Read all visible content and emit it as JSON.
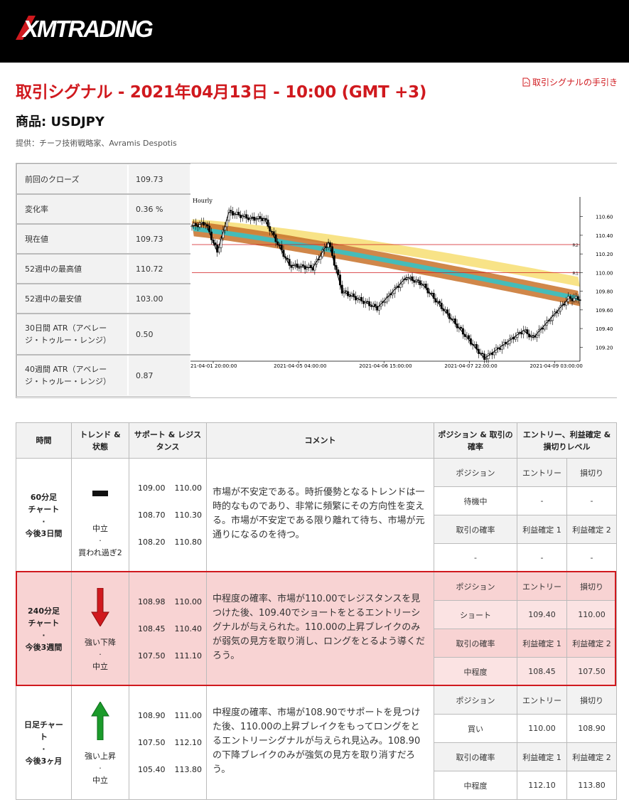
{
  "header": {
    "logo_text": "XMTRADING"
  },
  "title": "取引シグナル - 2021年04月13日 - 10:00 (GMT +3)",
  "guide_link": "取引シグナルの手引き",
  "product": "商品: USDJPY",
  "provider": "提供：チーフ技術戦略家、Avramis Despotis",
  "stats": [
    {
      "label": "前回のクローズ",
      "value": "109.73"
    },
    {
      "label": "変化率",
      "value": "0.36 %"
    },
    {
      "label": "現在値",
      "value": "109.73"
    },
    {
      "label": "52週中の最高値",
      "value": "110.72"
    },
    {
      "label": "52週中の最安値",
      "value": "103.00"
    },
    {
      "label": "30日間 ATR（アベレージ・トゥルー・レンジ）",
      "value": "0.50"
    },
    {
      "label": "40週間 ATR（アベレージ・トゥルー・レンジ）",
      "value": "0.87"
    }
  ],
  "chart_data": {
    "type": "candlestick",
    "title": "Hourly",
    "y_ticks": [
      "110.60",
      "110.40",
      "110.20",
      "110.00",
      "109.80",
      "109.60",
      "109.40",
      "109.20"
    ],
    "x_ticks": [
      "21-04-01 20:00:00",
      "2021-04-05 04:00:00",
      "2021-04-06 15:00:00",
      "2021-04-07 22:00:00",
      "2021-04-09 03:00:00"
    ],
    "levels": [
      {
        "name": "R2",
        "value": 110.3
      },
      {
        "name": "R1",
        "value": 110.0
      }
    ],
    "ylim": [
      109.05,
      110.75
    ],
    "colors": {
      "yellow_band": "#f7e07a",
      "orange_band": "#c8722a",
      "teal_band": "#3dbfbf",
      "level_line": "#d0191e"
    },
    "zigzag": [
      [
        0,
        110.5
      ],
      [
        7,
        110.53
      ],
      [
        13,
        110.22
      ],
      [
        19,
        110.65
      ],
      [
        30,
        110.58
      ],
      [
        37,
        110.58
      ],
      [
        50,
        110.08
      ],
      [
        62,
        110.05
      ],
      [
        70,
        110.33
      ],
      [
        77,
        109.8
      ],
      [
        95,
        109.62
      ],
      [
        110,
        109.95
      ],
      [
        118,
        109.88
      ],
      [
        150,
        109.08
      ],
      [
        170,
        109.38
      ],
      [
        175,
        109.3
      ],
      [
        193,
        109.72
      ]
    ],
    "candles_path": "synthetic"
  },
  "signals": {
    "headers": {
      "time": "時間",
      "trend": "トレンド & 状態",
      "sr": "サポート & レジスタンス",
      "comment": "コメント",
      "position": "ポジション & 取引の確率",
      "levels": "エントリー、利益確定 & 損切りレベル"
    },
    "rows": [
      {
        "timeframe": [
          "60分足",
          "チャート",
          "·",
          "今後3日間"
        ],
        "trend_icon": "flat-bar-icon",
        "trend_text": [
          "中立",
          "·",
          "買われ過ぎ2"
        ],
        "sr": [
          [
            "109.00",
            "110.00"
          ],
          [
            "108.70",
            "110.30"
          ],
          [
            "108.20",
            "110.80"
          ]
        ],
        "comment": "市場が不安定である。時折優勢となるトレンドは一時的なものであり、非常に頻繁にその方向性を変える。市場が不安定である限り離れて待ち、市場が元通りになるのを待つ。",
        "grid": [
          [
            "ポジション",
            "エントリー",
            "損切り"
          ],
          [
            "待機中",
            "-",
            "-"
          ],
          [
            "取引の確率",
            "利益確定 1",
            "利益確定 2"
          ],
          [
            "-",
            "-",
            "-"
          ]
        ]
      },
      {
        "timeframe": [
          "240分足",
          "チャート",
          "·",
          "今後3週間"
        ],
        "trend_icon": "arrow-down-icon",
        "trend_text": [
          "強い下降",
          "·",
          "中立"
        ],
        "sr": [
          [
            "108.98",
            "110.00"
          ],
          [
            "108.45",
            "110.40"
          ],
          [
            "107.50",
            "111.10"
          ]
        ],
        "comment": "中程度の確率、市場が110.00でレジスタンスを見つけた後、109.40でショートをとるエントリーシグナルが与えられた。110.00の上昇ブレイクのみが弱気の見方を取り消し、ロングをとるよう導くだろう。",
        "grid": [
          [
            "ポジション",
            "エントリー",
            "損切り"
          ],
          [
            "ショート",
            "109.40",
            "110.00"
          ],
          [
            "取引の確率",
            "利益確定 1",
            "利益確定 2"
          ],
          [
            "中程度",
            "108.45",
            "107.50"
          ]
        ]
      },
      {
        "timeframe": [
          "日足チャー",
          "ト",
          "·",
          "今後3ヶ月"
        ],
        "trend_icon": "arrow-up-icon",
        "trend_text": [
          "強い上昇",
          "·",
          "中立"
        ],
        "sr": [
          [
            "108.90",
            "111.00"
          ],
          [
            "107.50",
            "112.10"
          ],
          [
            "105.40",
            "113.80"
          ]
        ],
        "comment": "中程度の確率、市場が108.90でサポートを見つけた後、110.00の上昇ブレイクをもってロングをとるエントリーシグナルが与えられ見込み。108.90の下降ブレイクのみが強気の見方を取り消すだろう。",
        "grid": [
          [
            "ポジション",
            "エントリー",
            "損切り"
          ],
          [
            "買い",
            "110.00",
            "108.90"
          ],
          [
            "取引の確率",
            "利益確定 1",
            "利益確定 2"
          ],
          [
            "中程度",
            "112.10",
            "113.80"
          ]
        ]
      }
    ]
  }
}
